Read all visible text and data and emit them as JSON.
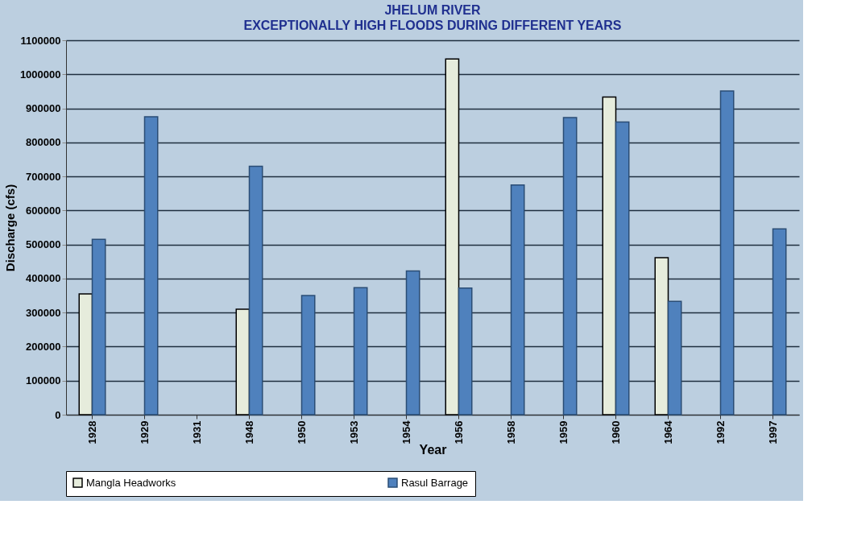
{
  "chart_data": {
    "type": "bar",
    "title": "JHELUM RIVER",
    "subtitle": "EXCEPTIONALLY HIGH FLOODS DURING DIFFERENT YEARS",
    "xlabel": "Year",
    "ylabel": "Discharge (cfs)",
    "categories": [
      "1928",
      "1929",
      "1931",
      "1948",
      "1950",
      "1953",
      "1954",
      "1956",
      "1958",
      "1959",
      "1960",
      "1964",
      "1992",
      "1997"
    ],
    "series": [
      {
        "name": "Mangla Headworks",
        "color": "#e6ecdc",
        "values": [
          355000,
          null,
          null,
          310000,
          null,
          null,
          null,
          1045000,
          null,
          null,
          933000,
          461000,
          null,
          null
        ]
      },
      {
        "name": "Rasul Barrage",
        "color": "#4f81bd",
        "values": [
          515000,
          875000,
          null,
          730000,
          350000,
          373000,
          422000,
          372000,
          675000,
          873000,
          860000,
          333000,
          951000,
          546000
        ]
      }
    ],
    "ylim": [
      0,
      1100000
    ],
    "yticks": [
      0,
      100000,
      200000,
      300000,
      400000,
      500000,
      600000,
      700000,
      800000,
      900000,
      1000000,
      1100000
    ],
    "grid": "y",
    "legend": "bottom"
  }
}
